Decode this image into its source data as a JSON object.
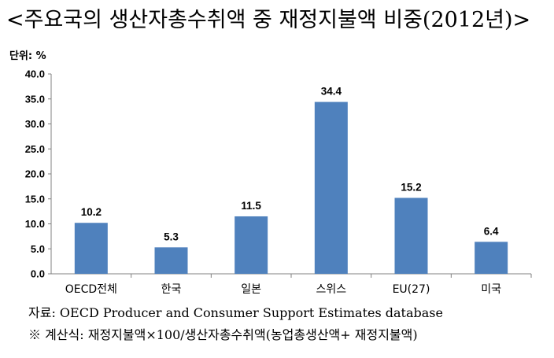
{
  "title": "<주요국의 생산자총수취액 중 재정지불액 비중(2012년)>",
  "unit_label": "단위: %",
  "source": "자료: OECD Producer and Consumer Support Estimates database",
  "note": "※ 계산식: 재정지불액×100/생산자총수취액(농업총생산액+ 재정지불액)",
  "bar_color": "#4F81BD",
  "chart_data": {
    "type": "bar",
    "title": "<주요국의 생산자총수취액 중 재정지불액 비중(2012년)>",
    "categories": [
      "OECD전체",
      "한국",
      "일본",
      "스위스",
      "EU(27)",
      "미국"
    ],
    "values": [
      10.2,
      5.3,
      11.5,
      34.4,
      15.2,
      6.4
    ],
    "value_labels": [
      "10.2",
      "5.3",
      "11.5",
      "34.4",
      "15.2",
      "6.4"
    ],
    "ylabel": "단위: %",
    "ylim": [
      0,
      40
    ],
    "yticks": [
      "0.0",
      "5.0",
      "10.0",
      "15.0",
      "20.0",
      "25.0",
      "30.0",
      "35.0",
      "40.0"
    ],
    "grid": false,
    "legend": "none"
  }
}
